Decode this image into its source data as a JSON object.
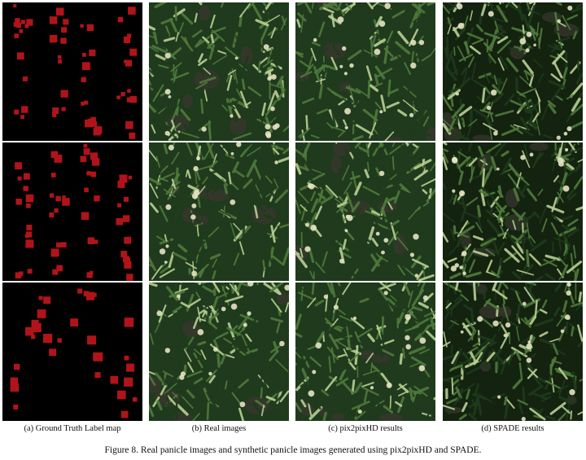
{
  "figure": {
    "caption": "Figure 8. Real panicle images and synthetic panicle images generated using pix2pixHD and SPADE.",
    "columns": [
      {
        "key": "label",
        "caption": "(a) Ground Truth Label map"
      },
      {
        "key": "real",
        "caption": "(b) Real images"
      },
      {
        "key": "pix2pixhd",
        "caption": "(c) pix2pixHD results"
      },
      {
        "key": "spade",
        "caption": "(d) SPADE results"
      }
    ],
    "rows": 3
  },
  "colors": {
    "label_background": "#000000",
    "label_mark": "#b0141a",
    "foliage_dark": "#1f3a1c",
    "foliage_mid": "#4f7a3c",
    "foliage_light": "#b9cf93",
    "panicle": "#e6e3c3",
    "soil": "#3b3630",
    "spade_background": "#13230f"
  }
}
